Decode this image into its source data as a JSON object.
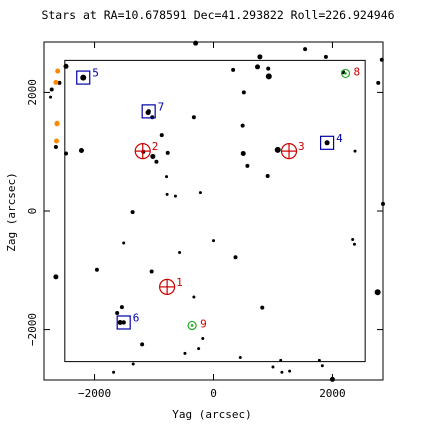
{
  "chart_data": {
    "type": "scatter",
    "title": "Stars at RA=10.678591 Dec=41.293822 Roll=226.924946",
    "xlabel": "Yag (arcsec)",
    "ylabel": "Zag (arcsec)",
    "xlim": [
      -2850,
      2850
    ],
    "ylim": [
      -2850,
      2850
    ],
    "xticks": [
      {
        "value": -2000,
        "label": "−2000"
      },
      {
        "value": 0,
        "label": "0"
      },
      {
        "value": 2000,
        "label": "2000"
      }
    ],
    "yticks": [
      {
        "value": -2000,
        "label": "−2000"
      },
      {
        "value": 0,
        "label": "0"
      },
      {
        "value": 2000,
        "label": "2000"
      }
    ],
    "fov_box": {
      "x": [
        -2500,
        2550
      ],
      "y": [
        -2540,
        2540
      ]
    },
    "colors": {
      "guide": "#cc0000",
      "acq": "#0000aa",
      "fid": "#22aa22",
      "bad": "#ff8800",
      "star": "#000000"
    },
    "stars": [
      {
        "x": -2720,
        "y": 2050,
        "size": 3
      },
      {
        "x": -2590,
        "y": 2160,
        "size": 3
      },
      {
        "x": -2480,
        "y": 2440,
        "size": 4
      },
      {
        "x": -2190,
        "y": 2250,
        "size": 5
      },
      {
        "x": -2650,
        "y": 1080,
        "size": 3
      },
      {
        "x": -2480,
        "y": 970,
        "size": 3
      },
      {
        "x": -2220,
        "y": 1020,
        "size": 4
      },
      {
        "x": -2650,
        "y": -1110,
        "size": 4
      },
      {
        "x": -1960,
        "y": -990,
        "size": 3
      },
      {
        "x": -1540,
        "y": -1620,
        "size": 3
      },
      {
        "x": -1620,
        "y": -1720,
        "size": 3
      },
      {
        "x": -1570,
        "y": -1880,
        "size": 4
      },
      {
        "x": -1510,
        "y": -540,
        "size": 2
      },
      {
        "x": -1680,
        "y": -2720,
        "size": 2
      },
      {
        "x": -1350,
        "y": -2580,
        "size": 2
      },
      {
        "x": -1360,
        "y": -20,
        "size": 3
      },
      {
        "x": -1100,
        "y": 1660,
        "size": 4
      },
      {
        "x": -1180,
        "y": 1000,
        "size": 3
      },
      {
        "x": -1020,
        "y": 920,
        "size": 4
      },
      {
        "x": -960,
        "y": 830,
        "size": 3
      },
      {
        "x": -1030,
        "y": 1580,
        "size": 3
      },
      {
        "x": -1040,
        "y": -1020,
        "size": 3
      },
      {
        "x": -1200,
        "y": -2250,
        "size": 3
      },
      {
        "x": -870,
        "y": 1280,
        "size": 3
      },
      {
        "x": -770,
        "y": 980,
        "size": 3
      },
      {
        "x": -790,
        "y": 580,
        "size": 2
      },
      {
        "x": -780,
        "y": 280,
        "size": 2
      },
      {
        "x": -640,
        "y": 250,
        "size": 2
      },
      {
        "x": -570,
        "y": -700,
        "size": 2
      },
      {
        "x": -480,
        "y": -2400,
        "size": 2
      },
      {
        "x": -330,
        "y": -1450,
        "size": 2
      },
      {
        "x": -330,
        "y": 1580,
        "size": 3
      },
      {
        "x": -220,
        "y": 310,
        "size": 2
      },
      {
        "x": -250,
        "y": -2320,
        "size": 2
      },
      {
        "x": -180,
        "y": -2150,
        "size": 2
      },
      {
        "x": 0,
        "y": -500,
        "size": 2
      },
      {
        "x": -300,
        "y": 2830,
        "size": 4
      },
      {
        "x": 330,
        "y": 2380,
        "size": 3
      },
      {
        "x": 510,
        "y": 2000,
        "size": 3
      },
      {
        "x": 490,
        "y": 1440,
        "size": 3
      },
      {
        "x": 370,
        "y": -780,
        "size": 3
      },
      {
        "x": 500,
        "y": 970,
        "size": 4
      },
      {
        "x": 570,
        "y": 760,
        "size": 3
      },
      {
        "x": 450,
        "y": -2470,
        "size": 2
      },
      {
        "x": 740,
        "y": 2430,
        "size": 4
      },
      {
        "x": 780,
        "y": 2600,
        "size": 4
      },
      {
        "x": 930,
        "y": 2270,
        "size": 5
      },
      {
        "x": 920,
        "y": 2400,
        "size": 3
      },
      {
        "x": 910,
        "y": 590,
        "size": 3
      },
      {
        "x": 820,
        "y": -1630,
        "size": 3
      },
      {
        "x": 1080,
        "y": 1030,
        "size": 5
      },
      {
        "x": 1130,
        "y": -2520,
        "size": 2
      },
      {
        "x": 1000,
        "y": -2630,
        "size": 2
      },
      {
        "x": 1150,
        "y": -2720,
        "size": 2
      },
      {
        "x": 1280,
        "y": -2700,
        "size": 2
      },
      {
        "x": 1540,
        "y": 2730,
        "size": 3
      },
      {
        "x": 1890,
        "y": 2600,
        "size": 3
      },
      {
        "x": 1910,
        "y": 1150,
        "size": 4
      },
      {
        "x": 2000,
        "y": -2840,
        "size": 4
      },
      {
        "x": 1830,
        "y": -2610,
        "size": 2
      },
      {
        "x": 1780,
        "y": -2520,
        "size": 2
      },
      {
        "x": 2180,
        "y": 2340,
        "size": 3
      },
      {
        "x": 2340,
        "y": -480,
        "size": 2
      },
      {
        "x": 2370,
        "y": -560,
        "size": 2
      },
      {
        "x": 2760,
        "y": -1370,
        "size": 5
      },
      {
        "x": 2850,
        "y": 120,
        "size": 3
      },
      {
        "x": 2830,
        "y": 2550,
        "size": 3
      },
      {
        "x": 2770,
        "y": 2160,
        "size": 3
      },
      {
        "x": -2740,
        "y": 1920,
        "size": 2
      },
      {
        "x": 2380,
        "y": 1010,
        "size": 2
      }
    ],
    "bad_stars": [
      {
        "x": -2620,
        "y": 2360
      },
      {
        "x": -2650,
        "y": 2170
      },
      {
        "x": -2630,
        "y": 1470
      },
      {
        "x": -2630,
        "y": 1480
      },
      {
        "x": -2640,
        "y": 1180
      }
    ],
    "guide_stars": [
      {
        "id": "1",
        "x": -780,
        "y": -1280
      },
      {
        "id": "2",
        "x": -1190,
        "y": 1010
      },
      {
        "id": "3",
        "x": 1270,
        "y": 1010
      }
    ],
    "acq_stars": [
      {
        "id": "4",
        "x": 1910,
        "y": 1150
      },
      {
        "id": "5",
        "x": -2190,
        "y": 2250
      },
      {
        "id": "6",
        "x": -1510,
        "y": -1880
      },
      {
        "id": "7",
        "x": -1090,
        "y": 1680
      }
    ],
    "fid_lights": [
      {
        "id": "8",
        "x": 2220,
        "y": 2320
      },
      {
        "id": "9",
        "x": -360,
        "y": -1930
      }
    ]
  }
}
